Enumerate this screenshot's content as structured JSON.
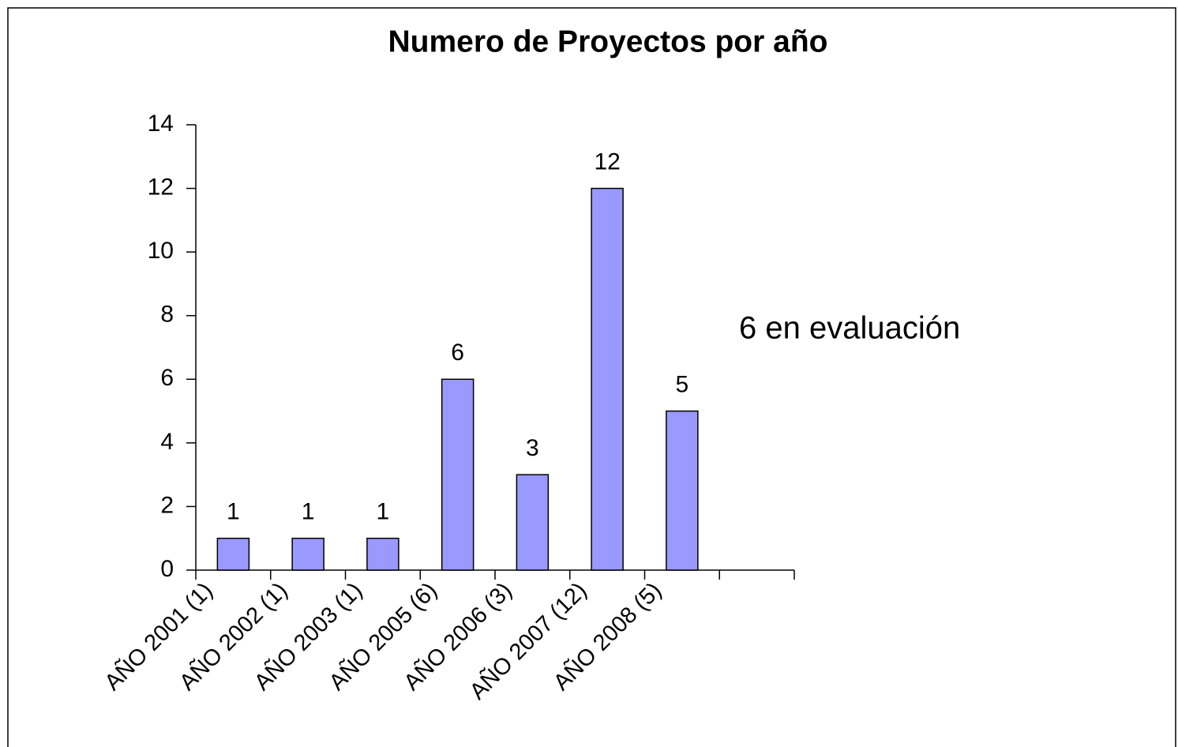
{
  "chart_data": {
    "type": "bar",
    "title": "Numero de Proyectos por año",
    "categories": [
      "AÑO 2001 (1)",
      "AÑO 2002 (1)",
      "AÑO 2003 (1)",
      "AÑO 2005 (6)",
      "AÑO 2006 (3)",
      "AÑO 2007 (12)",
      "AÑO 2008 (5)",
      null
    ],
    "values": [
      1,
      1,
      1,
      6,
      3,
      12,
      5,
      null
    ],
    "color": "#9999ff",
    "ylim": [
      0,
      14
    ],
    "yticks": [
      0,
      2,
      4,
      6,
      8,
      10,
      12,
      14
    ],
    "grid": false,
    "annotation": "6 en evaluación"
  }
}
